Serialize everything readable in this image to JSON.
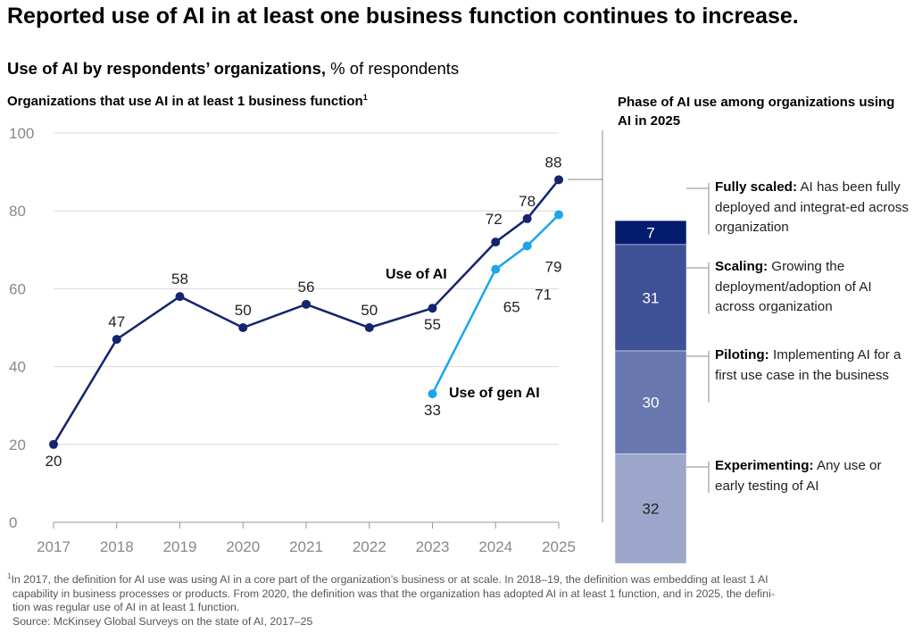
{
  "title": "Reported use of AI in at least one business function continues to increase.",
  "subtitle_bold": "Use of AI by respondents’ organizations,",
  "subtitle_rest": " % of respondents",
  "left_title": "Organizations that use AI in at least 1 business function",
  "left_title_sup": "1",
  "right_title": "Phase of AI use among organizations using AI in 2025",
  "footnote_sup": "1",
  "footnote_line1": "In 2017, the definition for AI use was using AI in a core part of the organization’s business or at scale. In 2018–19, the definition was embedding at least 1 AI",
  "footnote_line2": "capability in business processes or products. From 2020, the definition was that the organization has adopted AI in at least 1 function, and in 2025, the defini-",
  "footnote_line3": "tion was regular use of AI in at least 1 function.",
  "source": "Source: McKinsey Global Surveys on the state of AI, 2017–25",
  "colors": {
    "use_of_ai": "#14246e",
    "gen_ai": "#1ba6ea",
    "grid": "#d9d9d9",
    "axis": "#999999"
  },
  "chart_data": [
    {
      "type": "line",
      "title": "Organizations that use AI in at least 1 business function",
      "x_ticks": [
        "2017",
        "2018",
        "2019",
        "2020",
        "2021",
        "2022",
        "2023",
        "2024",
        "2025"
      ],
      "y_ticks": [
        "0",
        "20",
        "40",
        "60",
        "80",
        "100"
      ],
      "ylim": [
        0,
        100
      ],
      "grid": true,
      "series": [
        {
          "name": "Use of AI",
          "x": [
            2017,
            2018,
            2019,
            2020,
            2021,
            2022,
            2023,
            2024,
            2024.5,
            2025
          ],
          "values": [
            20,
            47,
            58,
            50,
            56,
            50,
            55,
            72,
            78,
            88
          ],
          "labels": [
            "20",
            "47",
            "58",
            "50",
            "56",
            "50",
            "55",
            "72",
            "78",
            "88"
          ]
        },
        {
          "name": "Use of gen AI",
          "x": [
            2023,
            2024,
            2024.5,
            2025
          ],
          "values": [
            33,
            65,
            71,
            79
          ],
          "labels": [
            "33",
            "65",
            "71",
            "79"
          ]
        }
      ]
    },
    {
      "type": "bar",
      "stacked": true,
      "title": "Phase of AI use among organizations using AI in 2025",
      "total": 88,
      "segments": [
        {
          "value": 7,
          "label": "7",
          "name": "Fully scaled:",
          "desc": " AI has been fully deployed and integrat-ed across organization",
          "color": "#061d6f"
        },
        {
          "value": 31,
          "label": "31",
          "name": "Scaling:",
          "desc": " Growing the deployment/adoption of AI across organization",
          "color": "#3f5196"
        },
        {
          "value": 30,
          "label": "30",
          "name": "Piloting:",
          "desc": " Implementing AI for a first use case in the business",
          "color": "#6878ae"
        },
        {
          "value": 32,
          "label": "32",
          "name": "Experimenting:",
          "desc": " Any use or early testing of AI",
          "color": "#9ca6cb"
        }
      ]
    }
  ]
}
